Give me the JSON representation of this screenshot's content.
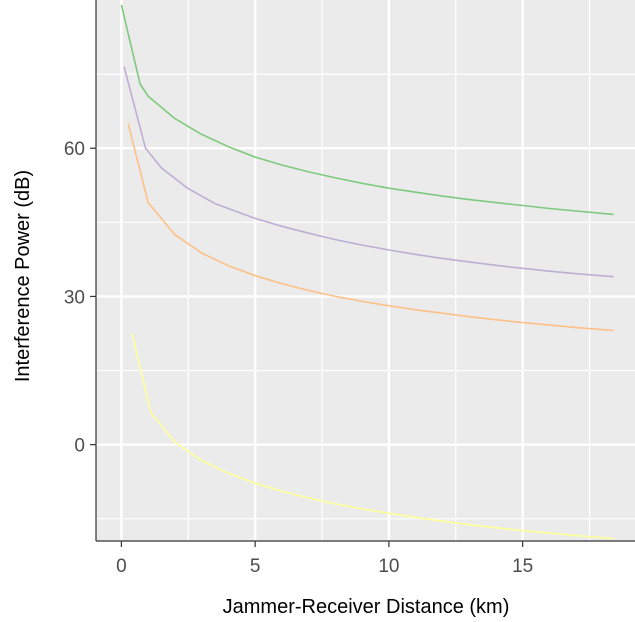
{
  "chart_data": {
    "type": "line",
    "title": "",
    "xlabel": "Jammer-Receiver Distance (km)",
    "ylabel": "Interference Power (dB)",
    "xlim": [
      -0.95,
      19.2
    ],
    "ylim": [
      -19.5,
      90
    ],
    "x_ticks": [
      0,
      5,
      10,
      15
    ],
    "y_ticks": [
      0,
      30,
      60
    ],
    "grid": true,
    "legend": "none",
    "series": [
      {
        "color": "#7fc97f",
        "points": [
          [
            0,
            89
          ],
          [
            0.7,
            73
          ],
          [
            1,
            70.5
          ],
          [
            2,
            66
          ],
          [
            3,
            62.8
          ],
          [
            4,
            60.3
          ],
          [
            5,
            58.2
          ],
          [
            6,
            56.6
          ],
          [
            7,
            55.2
          ],
          [
            8,
            54
          ],
          [
            9,
            52.9
          ],
          [
            10,
            51.9
          ],
          [
            11,
            51.1
          ],
          [
            12,
            50.3
          ],
          [
            13,
            49.6
          ],
          [
            14,
            49
          ],
          [
            15,
            48.4
          ],
          [
            16,
            47.8
          ],
          [
            17,
            47.3
          ],
          [
            18.4,
            46.6
          ]
        ]
      },
      {
        "color": "#beaed4",
        "points": [
          [
            0.1,
            76.5
          ],
          [
            0.9,
            60
          ],
          [
            1.5,
            56
          ],
          [
            2.5,
            51.8
          ],
          [
            3.5,
            48.8
          ],
          [
            5,
            45.8
          ],
          [
            6,
            44.2
          ],
          [
            7,
            42.8
          ],
          [
            8,
            41.5
          ],
          [
            9,
            40.4
          ],
          [
            10,
            39.4
          ],
          [
            11,
            38.5
          ],
          [
            12,
            37.7
          ],
          [
            13,
            37
          ],
          [
            14,
            36.3
          ],
          [
            15,
            35.7
          ],
          [
            16,
            35.1
          ],
          [
            17,
            34.6
          ],
          [
            18.4,
            34
          ]
        ]
      },
      {
        "color": "#fdc086",
        "points": [
          [
            0.25,
            65
          ],
          [
            1,
            49
          ],
          [
            2,
            42.5
          ],
          [
            3,
            38.8
          ],
          [
            4,
            36.2
          ],
          [
            5,
            34.2
          ],
          [
            6,
            32.6
          ],
          [
            7,
            31.2
          ],
          [
            8,
            30
          ],
          [
            9,
            29
          ],
          [
            10,
            28.1
          ],
          [
            11,
            27.3
          ],
          [
            12,
            26.6
          ],
          [
            13,
            25.9
          ],
          [
            14,
            25.3
          ],
          [
            15,
            24.7
          ],
          [
            16,
            24.2
          ],
          [
            17,
            23.7
          ],
          [
            18.4,
            23.1
          ]
        ]
      },
      {
        "color": "#ffff99",
        "points": [
          [
            0.4,
            22.5
          ],
          [
            1.1,
            6.5
          ],
          [
            2,
            0.5
          ],
          [
            3,
            -3.2
          ],
          [
            4,
            -5.8
          ],
          [
            5,
            -7.8
          ],
          [
            6,
            -9.4
          ],
          [
            7,
            -10.8
          ],
          [
            8,
            -12
          ],
          [
            9,
            -13
          ],
          [
            10,
            -13.9
          ],
          [
            11,
            -14.7
          ],
          [
            12,
            -15.5
          ],
          [
            13,
            -16.2
          ],
          [
            14,
            -16.8
          ],
          [
            15,
            -17.4
          ],
          [
            16,
            -17.9
          ],
          [
            17,
            -18.4
          ],
          [
            18.4,
            -19
          ]
        ]
      }
    ]
  }
}
